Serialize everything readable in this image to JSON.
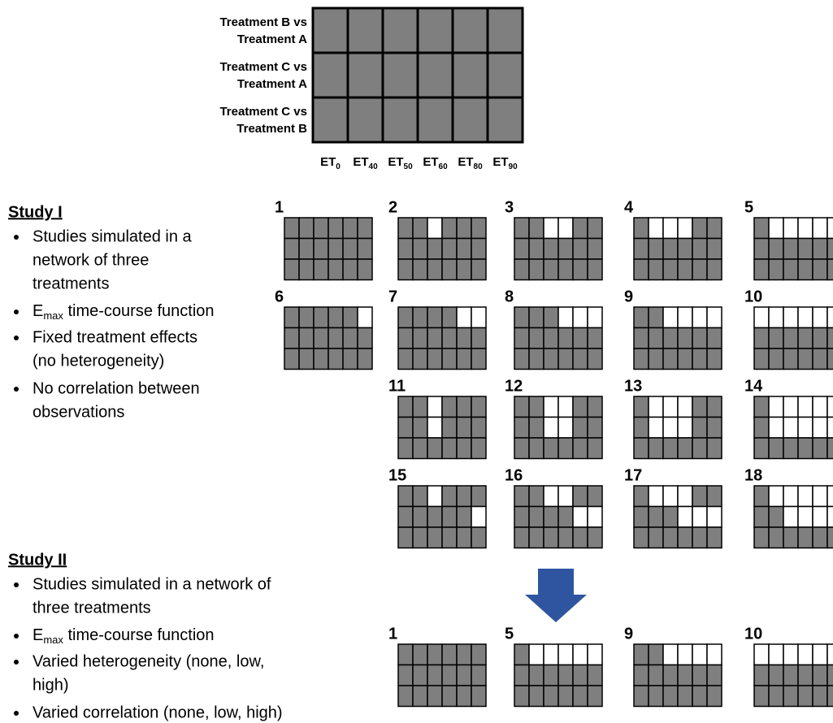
{
  "top_grid": {
    "row_labels": [
      [
        "Treatment B vs",
        "Treatment A"
      ],
      [
        "Treatment C vs",
        "Treatment A"
      ],
      [
        "Treatment C vs",
        "Treatment B"
      ]
    ],
    "column_labels": [
      {
        "main": "ET",
        "sub": "0"
      },
      {
        "main": "ET",
        "sub": "40"
      },
      {
        "main": "ET",
        "sub": "50"
      },
      {
        "main": "ET",
        "sub": "60"
      },
      {
        "main": "ET",
        "sub": "80"
      },
      {
        "main": "ET",
        "sub": "90"
      }
    ]
  },
  "study_1": {
    "title": "Study I",
    "bullets": [
      [
        "Studies simulated in a",
        "network of three",
        "treatments"
      ],
      [
        {
          "pre": "E",
          "sub": "max",
          "post": " time-course function"
        }
      ],
      [
        "Fixed treatment effects",
        "(no heterogeneity)"
      ],
      [
        "No correlation between",
        "observations"
      ]
    ],
    "scenarios": [
      "1",
      "2",
      "3",
      "4",
      "5",
      "6",
      "7",
      "8",
      "9",
      "10",
      "11",
      "12",
      "13",
      "14",
      "15",
      "16",
      "17",
      "18"
    ]
  },
  "study_2": {
    "title": "Study II",
    "bullets": [
      [
        "Studies simulated in a network of",
        "three treatments"
      ],
      [
        {
          "pre": "E",
          "sub": "max",
          "post": " time-course function"
        }
      ],
      [
        "Varied heterogeneity (none, low,",
        "high)"
      ],
      [
        "Varied correlation (none, low, high)"
      ]
    ],
    "scenarios": [
      "1",
      "5",
      "9",
      "10"
    ]
  }
}
